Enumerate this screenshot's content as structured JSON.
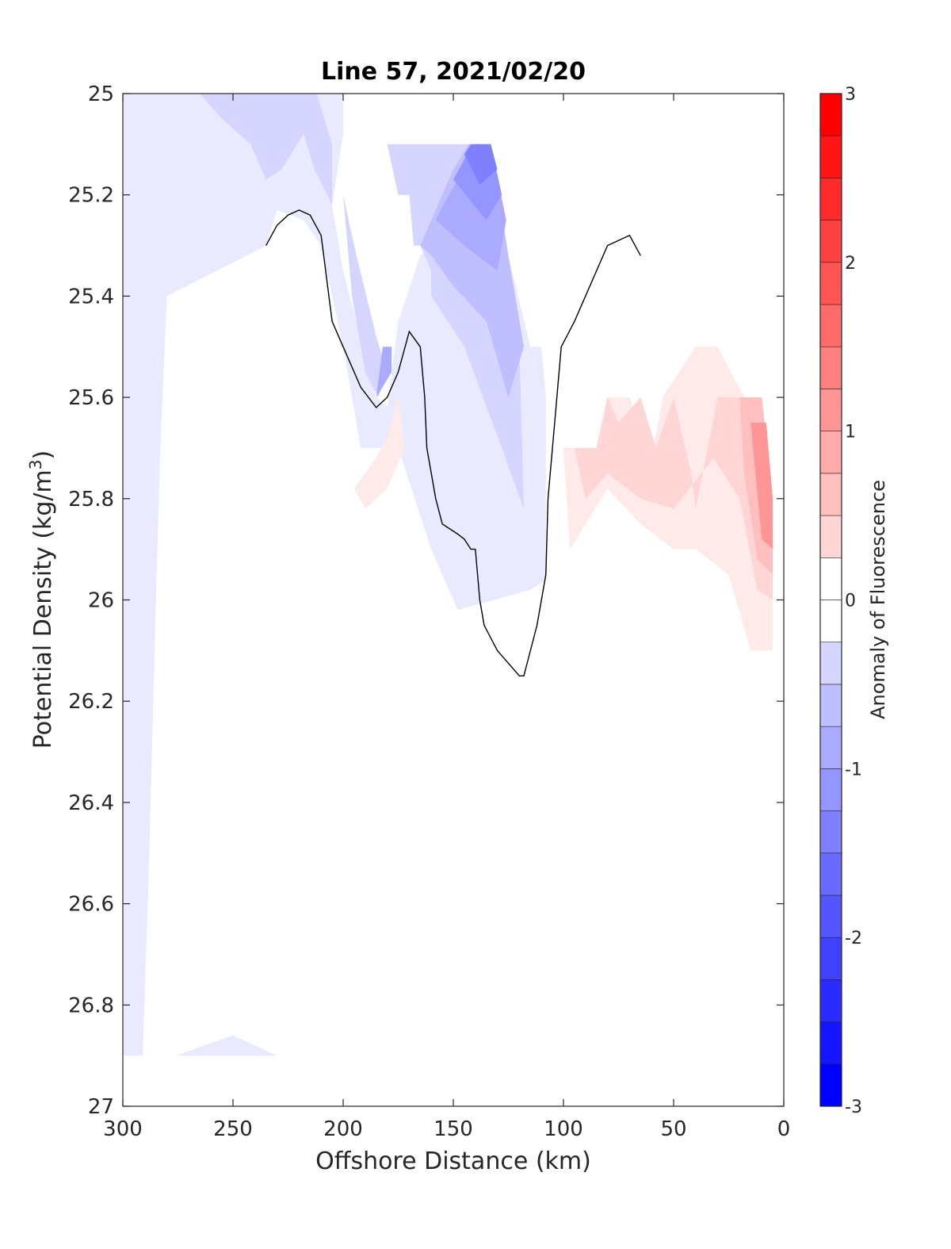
{
  "chart_data": {
    "type": "contour",
    "title": "Line 57, 2021/02/20",
    "xlabel": "Offshore Distance (km)",
    "ylabel_main": "Potential Density (kg/m",
    "ylabel_sup": "3",
    "ylabel_close": ")",
    "xlim": [
      300,
      0
    ],
    "ylim": [
      27,
      25
    ],
    "x_ticks": [
      300,
      250,
      200,
      150,
      100,
      50,
      0
    ],
    "x_tick_labels": [
      "300",
      "250",
      "200",
      "150",
      "100",
      "50",
      "0"
    ],
    "y_ticks": [
      25,
      25.2,
      25.4,
      25.6,
      25.8,
      26,
      26.2,
      26.4,
      26.6,
      26.8,
      27
    ],
    "y_tick_labels": [
      "25",
      "25.2",
      "25.4",
      "25.6",
      "25.8",
      "26",
      "26.2",
      "26.4",
      "26.6",
      "26.8",
      "27"
    ],
    "colorbar": {
      "label": "Anomaly of Fluorescence",
      "range": [
        -3,
        3
      ],
      "ticks": [
        -3,
        -2,
        -1,
        0,
        1,
        2,
        3
      ],
      "tick_labels": [
        "-3",
        "-2",
        "-1",
        "0",
        "1",
        "2",
        "3"
      ],
      "levels": [
        -3,
        -2.75,
        -2.5,
        -2.25,
        -2,
        -1.75,
        -1.5,
        -1.25,
        -1,
        -0.75,
        -0.5,
        -0.25,
        0,
        0.25,
        0.5,
        0.75,
        1,
        1.25,
        1.5,
        1.75,
        2,
        2.25,
        2.5,
        2.75,
        3
      ],
      "negative_color": "#0000ff",
      "positive_color": "#ff0000",
      "neutral_color": "#ffffff"
    },
    "zero_contour_color": "#000000",
    "filled_regions": [
      {
        "level": -0.25,
        "points": [
          [
            300,
            25
          ],
          [
            210,
            25
          ],
          [
            200,
            25
          ],
          [
            200,
            25.08
          ],
          [
            205,
            25.22
          ],
          [
            200,
            25.35
          ],
          [
            185,
            25.6
          ],
          [
            180,
            25.62
          ],
          [
            175,
            25.45
          ],
          [
            165,
            25.32
          ],
          [
            160,
            25.3
          ],
          [
            150,
            25.25
          ],
          [
            142,
            25.1
          ],
          [
            133,
            25.1
          ],
          [
            125,
            25.32
          ],
          [
            115,
            25.5
          ],
          [
            110,
            25.5
          ],
          [
            108,
            25.6
          ],
          [
            108,
            25.96
          ],
          [
            115,
            25.98
          ],
          [
            148,
            26.02
          ],
          [
            160,
            25.9
          ],
          [
            175,
            25.7
          ],
          [
            188,
            25.7
          ],
          [
            192,
            25.7
          ],
          [
            200,
            25.5
          ],
          [
            210,
            25.3
          ],
          [
            218,
            25.25
          ],
          [
            230,
            25.23
          ],
          [
            235,
            25.3
          ],
          [
            280,
            25.4
          ],
          [
            283,
            25.7
          ],
          [
            285,
            26.0
          ],
          [
            288,
            26.5
          ],
          [
            291,
            26.9
          ],
          [
            276,
            26.9
          ],
          [
            250,
            26.86
          ],
          [
            230,
            26.9
          ],
          [
            300,
            26.9
          ]
        ]
      },
      {
        "level": -0.5,
        "points": [
          [
            300,
            25
          ],
          [
            265,
            25
          ],
          [
            255,
            25.05
          ],
          [
            242,
            25.1
          ],
          [
            235,
            25.17
          ],
          [
            228,
            25.15
          ],
          [
            218,
            25.08
          ],
          [
            213,
            25.15
          ],
          [
            205,
            25.22
          ],
          [
            205,
            25.1
          ],
          [
            212,
            25
          ],
          [
            300,
            25
          ]
        ]
      },
      {
        "level": -0.5,
        "points": [
          [
            160,
            25.4
          ],
          [
            160,
            25.35
          ],
          [
            165,
            25.3
          ],
          [
            168,
            25.3
          ],
          [
            170,
            25.2
          ],
          [
            175,
            25.2
          ],
          [
            180,
            25.1
          ],
          [
            145,
            25.1
          ],
          [
            135,
            25.1
          ],
          [
            128,
            25.3
          ],
          [
            120,
            25.5
          ],
          [
            118,
            25.82
          ],
          [
            128,
            25.7
          ],
          [
            145,
            25.5
          ],
          [
            160,
            25.4
          ]
        ]
      },
      {
        "level": -0.5,
        "points": [
          [
            200,
            25.2
          ],
          [
            196,
            25.4
          ],
          [
            190,
            25.55
          ],
          [
            184,
            25.6
          ],
          [
            180,
            25.55
          ],
          [
            185,
            25.48
          ],
          [
            195,
            25.3
          ],
          [
            200,
            25.2
          ]
        ]
      },
      {
        "level": -0.75,
        "points": [
          [
            165,
            25.3
          ],
          [
            160,
            25.25
          ],
          [
            155,
            25.2
          ],
          [
            150,
            25.15
          ],
          [
            143,
            25.1
          ],
          [
            133,
            25.1
          ],
          [
            125,
            25.32
          ],
          [
            118,
            25.5
          ],
          [
            125,
            25.6
          ],
          [
            135,
            25.45
          ],
          [
            150,
            25.38
          ],
          [
            160,
            25.32
          ],
          [
            165,
            25.3
          ]
        ]
      },
      {
        "level": -1.0,
        "points": [
          [
            158,
            25.25
          ],
          [
            152,
            25.2
          ],
          [
            145,
            25.15
          ],
          [
            142,
            25.1
          ],
          [
            133,
            25.1
          ],
          [
            126,
            25.25
          ],
          [
            130,
            25.35
          ],
          [
            145,
            25.3
          ],
          [
            158,
            25.25
          ]
        ]
      },
      {
        "level": -1.25,
        "points": [
          [
            150,
            25.17
          ],
          [
            145,
            25.13
          ],
          [
            142,
            25.1
          ],
          [
            133,
            25.1
          ],
          [
            128,
            25.2
          ],
          [
            135,
            25.25
          ],
          [
            150,
            25.17
          ]
        ]
      },
      {
        "level": -1.5,
        "points": [
          [
            145,
            25.12
          ],
          [
            142,
            25.1
          ],
          [
            133,
            25.1
          ],
          [
            130,
            25.15
          ],
          [
            138,
            25.18
          ],
          [
            145,
            25.12
          ]
        ]
      },
      {
        "level": -1.0,
        "points": [
          [
            185,
            25.6
          ],
          [
            178,
            25.55
          ],
          [
            178,
            25.5
          ],
          [
            182,
            25.5
          ],
          [
            185,
            25.6
          ]
        ]
      },
      {
        "level": 0.25,
        "points": [
          [
            95,
            25.7
          ],
          [
            90,
            25.7
          ],
          [
            90,
            25.85
          ],
          [
            95,
            25.88
          ],
          [
            95,
            25.7
          ]
        ]
      },
      {
        "level": 0.25,
        "points": [
          [
            100,
            25.7
          ],
          [
            85,
            25.7
          ],
          [
            80,
            25.6
          ],
          [
            70,
            25.6
          ],
          [
            60,
            25.72
          ],
          [
            55,
            25.6
          ],
          [
            40,
            25.5
          ],
          [
            30,
            25.5
          ],
          [
            18,
            25.6
          ],
          [
            10,
            25.6
          ],
          [
            5,
            25.8
          ],
          [
            5,
            26.1
          ],
          [
            15,
            26.1
          ],
          [
            25,
            25.95
          ],
          [
            40,
            25.9
          ],
          [
            50,
            25.9
          ],
          [
            65,
            25.85
          ],
          [
            80,
            25.78
          ],
          [
            90,
            25.85
          ],
          [
            97,
            25.9
          ],
          [
            100,
            25.7
          ]
        ]
      },
      {
        "level": 0.5,
        "points": [
          [
            95,
            25.7
          ],
          [
            85,
            25.7
          ],
          [
            80,
            25.6
          ],
          [
            75,
            25.65
          ],
          [
            65,
            25.6
          ],
          [
            58,
            25.7
          ],
          [
            50,
            25.6
          ],
          [
            42,
            25.75
          ],
          [
            40,
            25.82
          ],
          [
            30,
            25.6
          ],
          [
            18,
            25.6
          ],
          [
            10,
            25.6
          ],
          [
            5,
            25.8
          ],
          [
            5,
            26.0
          ],
          [
            12,
            25.98
          ],
          [
            20,
            25.8
          ],
          [
            32,
            25.72
          ],
          [
            50,
            25.82
          ],
          [
            65,
            25.8
          ],
          [
            80,
            25.75
          ],
          [
            90,
            25.8
          ],
          [
            95,
            25.7
          ]
        ]
      },
      {
        "level": 0.75,
        "points": [
          [
            20,
            25.6
          ],
          [
            10,
            25.6
          ],
          [
            5,
            25.8
          ],
          [
            5,
            25.95
          ],
          [
            12,
            25.92
          ],
          [
            18,
            25.75
          ],
          [
            20,
            25.6
          ]
        ]
      },
      {
        "level": 1.25,
        "points": [
          [
            15,
            25.65
          ],
          [
            8,
            25.65
          ],
          [
            5,
            25.8
          ],
          [
            5,
            25.9
          ],
          [
            10,
            25.88
          ],
          [
            15,
            25.65
          ]
        ]
      },
      {
        "level": 0.25,
        "points": [
          [
            195,
            25.78
          ],
          [
            185,
            25.72
          ],
          [
            180,
            25.68
          ],
          [
            175,
            25.6
          ],
          [
            172,
            25.7
          ],
          [
            180,
            25.78
          ],
          [
            190,
            25.82
          ],
          [
            195,
            25.78
          ]
        ]
      }
    ],
    "contour_lines": [
      [
        [
          235,
          25.3
        ],
        [
          230,
          25.26
        ],
        [
          225,
          25.24
        ],
        [
          220,
          25.23
        ],
        [
          215,
          25.24
        ],
        [
          210,
          25.28
        ],
        [
          205,
          25.45
        ],
        [
          200,
          25.5
        ],
        [
          192,
          25.58
        ],
        [
          185,
          25.62
        ],
        [
          180,
          25.6
        ],
        [
          175,
          25.55
        ],
        [
          170,
          25.47
        ],
        [
          165,
          25.5
        ],
        [
          163,
          25.6
        ],
        [
          162,
          25.7
        ],
        [
          158,
          25.8
        ],
        [
          155,
          25.85
        ],
        [
          148,
          25.87
        ],
        [
          145,
          25.88
        ],
        [
          142,
          25.9
        ],
        [
          140,
          25.9
        ],
        [
          138,
          26.0
        ],
        [
          136,
          26.05
        ],
        [
          130,
          26.1
        ],
        [
          120,
          26.15
        ],
        [
          118,
          26.15
        ],
        [
          112,
          26.05
        ],
        [
          108,
          25.95
        ],
        [
          107,
          25.8
        ],
        [
          105,
          25.7
        ],
        [
          104,
          25.65
        ],
        [
          101,
          25.5
        ],
        [
          95,
          25.45
        ],
        [
          90,
          25.4
        ],
        [
          85,
          25.35
        ],
        [
          80,
          25.3
        ],
        [
          70,
          25.28
        ],
        [
          65,
          25.32
        ]
      ]
    ]
  }
}
